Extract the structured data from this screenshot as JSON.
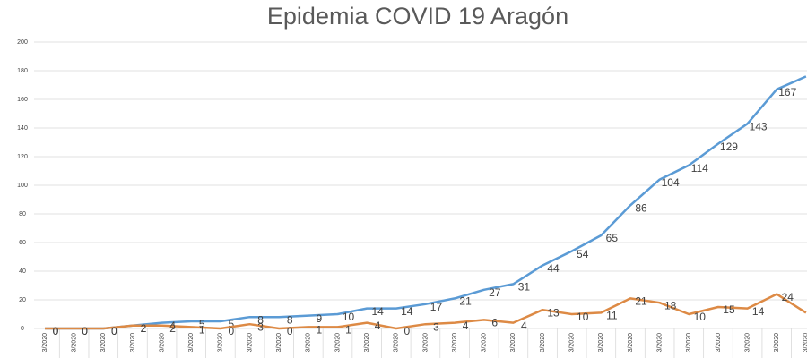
{
  "chart_data": {
    "type": "line",
    "title": "Epidemia COVID 19 Aragón",
    "categories": [
      "3/2020",
      "3/2020",
      "3/2020",
      "3/2020",
      "3/2020",
      "3/2020",
      "3/2020",
      "3/2020",
      "3/2020",
      "3/2020",
      "3/2020",
      "3/2020",
      "3/2020",
      "3/2020",
      "3/2020",
      "3/2020",
      "3/2020",
      "3/2020",
      "3/2020",
      "3/2020",
      "3/2020",
      "3/2020",
      "3/2020",
      "3/2020",
      "3/2020",
      "3/2020",
      "3/2020"
    ],
    "series": [
      {
        "color": "#5b9bd5",
        "values": [
          0,
          0,
          0,
          2,
          4,
          5,
          5,
          8,
          8,
          9,
          10,
          14,
          14,
          17,
          21,
          27,
          31,
          44,
          54,
          65,
          86,
          104,
          114,
          129,
          143,
          167,
          176
        ],
        "value_labels": [
          "0",
          "0",
          "0",
          "2",
          "4",
          "5",
          "5",
          "8",
          "8",
          "9",
          "10",
          "14",
          "14",
          "17",
          "21",
          "27",
          "31",
          "44",
          "54",
          "65",
          "86",
          "104",
          "114",
          "129",
          "143",
          "167",
          null
        ]
      },
      {
        "color": "#dd8a45",
        "values": [
          0,
          0,
          0,
          2,
          2,
          1,
          0,
          3,
          0,
          1,
          1,
          4,
          0,
          3,
          4,
          6,
          4,
          13,
          10,
          11,
          21,
          18,
          10,
          15,
          14,
          24,
          11
        ],
        "value_labels": [
          "0",
          "0",
          "0",
          "2",
          "2",
          "1",
          "0",
          "3",
          "0",
          "1",
          "1",
          "4",
          "0",
          "3",
          "4",
          "6",
          "4",
          "13",
          "10",
          "11",
          "21",
          "18",
          "10",
          "15",
          "14",
          "24",
          null
        ]
      }
    ],
    "ylim": [
      0,
      200
    ],
    "yticks": [
      0,
      20,
      40,
      60,
      80,
      100,
      120,
      140,
      160,
      180,
      200
    ],
    "grid": true
  }
}
